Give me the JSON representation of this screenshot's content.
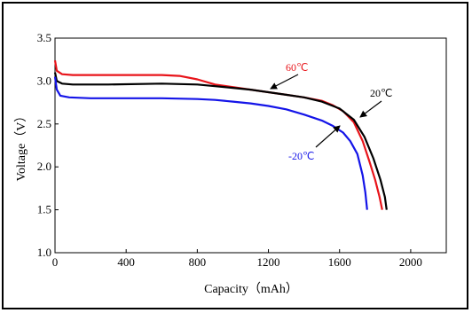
{
  "chart_data": {
    "type": "line",
    "title": "",
    "xlabel": "Capacity（mAh）",
    "ylabel": "Voltage（V）",
    "xlim": [
      0,
      2200
    ],
    "ylim": [
      1.0,
      3.5
    ],
    "x_ticks": [
      0,
      400,
      800,
      1200,
      1600,
      2000
    ],
    "y_ticks": [
      1.0,
      1.5,
      2.0,
      2.5,
      3.0,
      3.5
    ],
    "grid": false,
    "series": [
      {
        "name": "60℃",
        "color": "#e8141a",
        "points": [
          [
            0,
            3.24
          ],
          [
            10,
            3.12
          ],
          [
            40,
            3.08
          ],
          [
            100,
            3.07
          ],
          [
            300,
            3.07
          ],
          [
            600,
            3.07
          ],
          [
            700,
            3.06
          ],
          [
            800,
            3.02
          ],
          [
            900,
            2.96
          ],
          [
            1000,
            2.93
          ],
          [
            1100,
            2.9
          ],
          [
            1200,
            2.87
          ],
          [
            1300,
            2.84
          ],
          [
            1400,
            2.81
          ],
          [
            1500,
            2.77
          ],
          [
            1560,
            2.72
          ],
          [
            1620,
            2.65
          ],
          [
            1680,
            2.52
          ],
          [
            1730,
            2.3
          ],
          [
            1770,
            2.05
          ],
          [
            1800,
            1.85
          ],
          [
            1825,
            1.65
          ],
          [
            1840,
            1.5
          ]
        ]
      },
      {
        "name": "20℃",
        "color": "#000000",
        "points": [
          [
            0,
            3.1
          ],
          [
            10,
            3.0
          ],
          [
            40,
            2.97
          ],
          [
            100,
            2.96
          ],
          [
            300,
            2.96
          ],
          [
            600,
            2.97
          ],
          [
            800,
            2.96
          ],
          [
            900,
            2.94
          ],
          [
            1000,
            2.92
          ],
          [
            1100,
            2.9
          ],
          [
            1200,
            2.87
          ],
          [
            1300,
            2.84
          ],
          [
            1400,
            2.81
          ],
          [
            1500,
            2.76
          ],
          [
            1600,
            2.68
          ],
          [
            1680,
            2.55
          ],
          [
            1740,
            2.35
          ],
          [
            1790,
            2.1
          ],
          [
            1830,
            1.85
          ],
          [
            1855,
            1.65
          ],
          [
            1865,
            1.5
          ]
        ]
      },
      {
        "name": "-20℃",
        "color": "#1414e8",
        "points": [
          [
            0,
            3.05
          ],
          [
            10,
            2.9
          ],
          [
            30,
            2.83
          ],
          [
            80,
            2.81
          ],
          [
            200,
            2.8
          ],
          [
            400,
            2.8
          ],
          [
            600,
            2.8
          ],
          [
            800,
            2.79
          ],
          [
            900,
            2.78
          ],
          [
            1000,
            2.76
          ],
          [
            1100,
            2.74
          ],
          [
            1200,
            2.71
          ],
          [
            1300,
            2.67
          ],
          [
            1400,
            2.61
          ],
          [
            1500,
            2.54
          ],
          [
            1560,
            2.48
          ],
          [
            1620,
            2.4
          ],
          [
            1660,
            2.3
          ],
          [
            1700,
            2.15
          ],
          [
            1730,
            1.9
          ],
          [
            1745,
            1.7
          ],
          [
            1755,
            1.5
          ]
        ]
      }
    ],
    "annotations": [
      {
        "text": "60℃",
        "series": "60℃"
      },
      {
        "text": "20℃",
        "series": "20℃"
      },
      {
        "text": "-20℃",
        "series": "-20℃"
      }
    ]
  }
}
